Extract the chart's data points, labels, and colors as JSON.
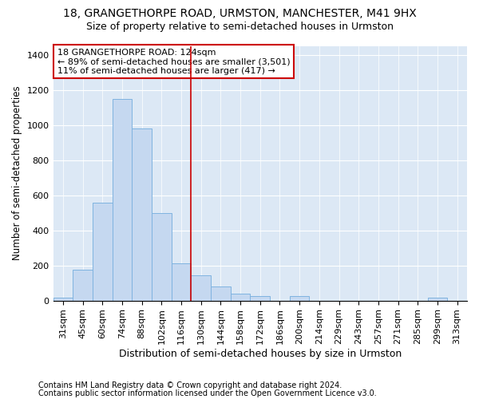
{
  "title1": "18, GRANGETHORPE ROAD, URMSTON, MANCHESTER, M41 9HX",
  "title2": "Size of property relative to semi-detached houses in Urmston",
  "xlabel": "Distribution of semi-detached houses by size in Urmston",
  "ylabel": "Number of semi-detached properties",
  "footer1": "Contains HM Land Registry data © Crown copyright and database right 2024.",
  "footer2": "Contains public sector information licensed under the Open Government Licence v3.0.",
  "categories": [
    "31sqm",
    "45sqm",
    "60sqm",
    "74sqm",
    "88sqm",
    "102sqm",
    "116sqm",
    "130sqm",
    "144sqm",
    "158sqm",
    "172sqm",
    "186sqm",
    "200sqm",
    "214sqm",
    "229sqm",
    "243sqm",
    "257sqm",
    "271sqm",
    "285sqm",
    "299sqm",
    "313sqm"
  ],
  "values": [
    15,
    175,
    557,
    1150,
    980,
    500,
    210,
    145,
    80,
    40,
    25,
    0,
    25,
    0,
    0,
    0,
    0,
    0,
    0,
    15,
    0
  ],
  "bar_color": "#c5d8f0",
  "bar_edge_color": "#7fb3e0",
  "property_line_x": 6.5,
  "annotation_text": "18 GRANGETHORPE ROAD: 124sqm\n← 89% of semi-detached houses are smaller (3,501)\n11% of semi-detached houses are larger (417) →",
  "ylim": [
    0,
    1450
  ],
  "yticks": [
    0,
    200,
    400,
    600,
    800,
    1000,
    1200,
    1400
  ],
  "bg_color": "#ffffff",
  "plot_bg_color": "#dce8f5",
  "annotation_box_color": "#ffffff",
  "annotation_border_color": "#cc0000",
  "vline_color": "#cc0000",
  "title1_fontsize": 10,
  "title2_fontsize": 9,
  "xlabel_fontsize": 9,
  "ylabel_fontsize": 8.5,
  "tick_fontsize": 8,
  "annot_fontsize": 8,
  "footer_fontsize": 7
}
